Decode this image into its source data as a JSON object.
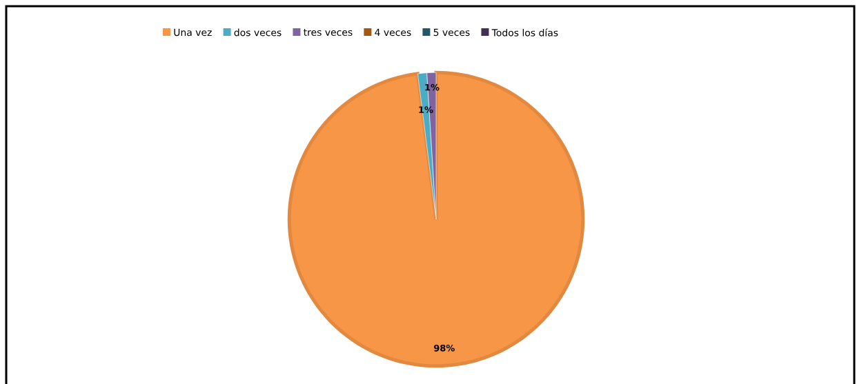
{
  "chart_data": {
    "type": "pie",
    "categories": [
      "Una vez",
      "dos veces",
      "tres veces",
      "4 veces",
      "5 veces",
      "Todos los días"
    ],
    "values": [
      98,
      1,
      1,
      0,
      0,
      0
    ],
    "colors": [
      "#f79646",
      "#4bacc6",
      "#8064a2",
      "#a5560f",
      "#215968",
      "#403152"
    ],
    "value_labels": [
      "98%",
      "1%",
      "1%",
      null,
      null,
      null
    ],
    "legend": "top"
  }
}
